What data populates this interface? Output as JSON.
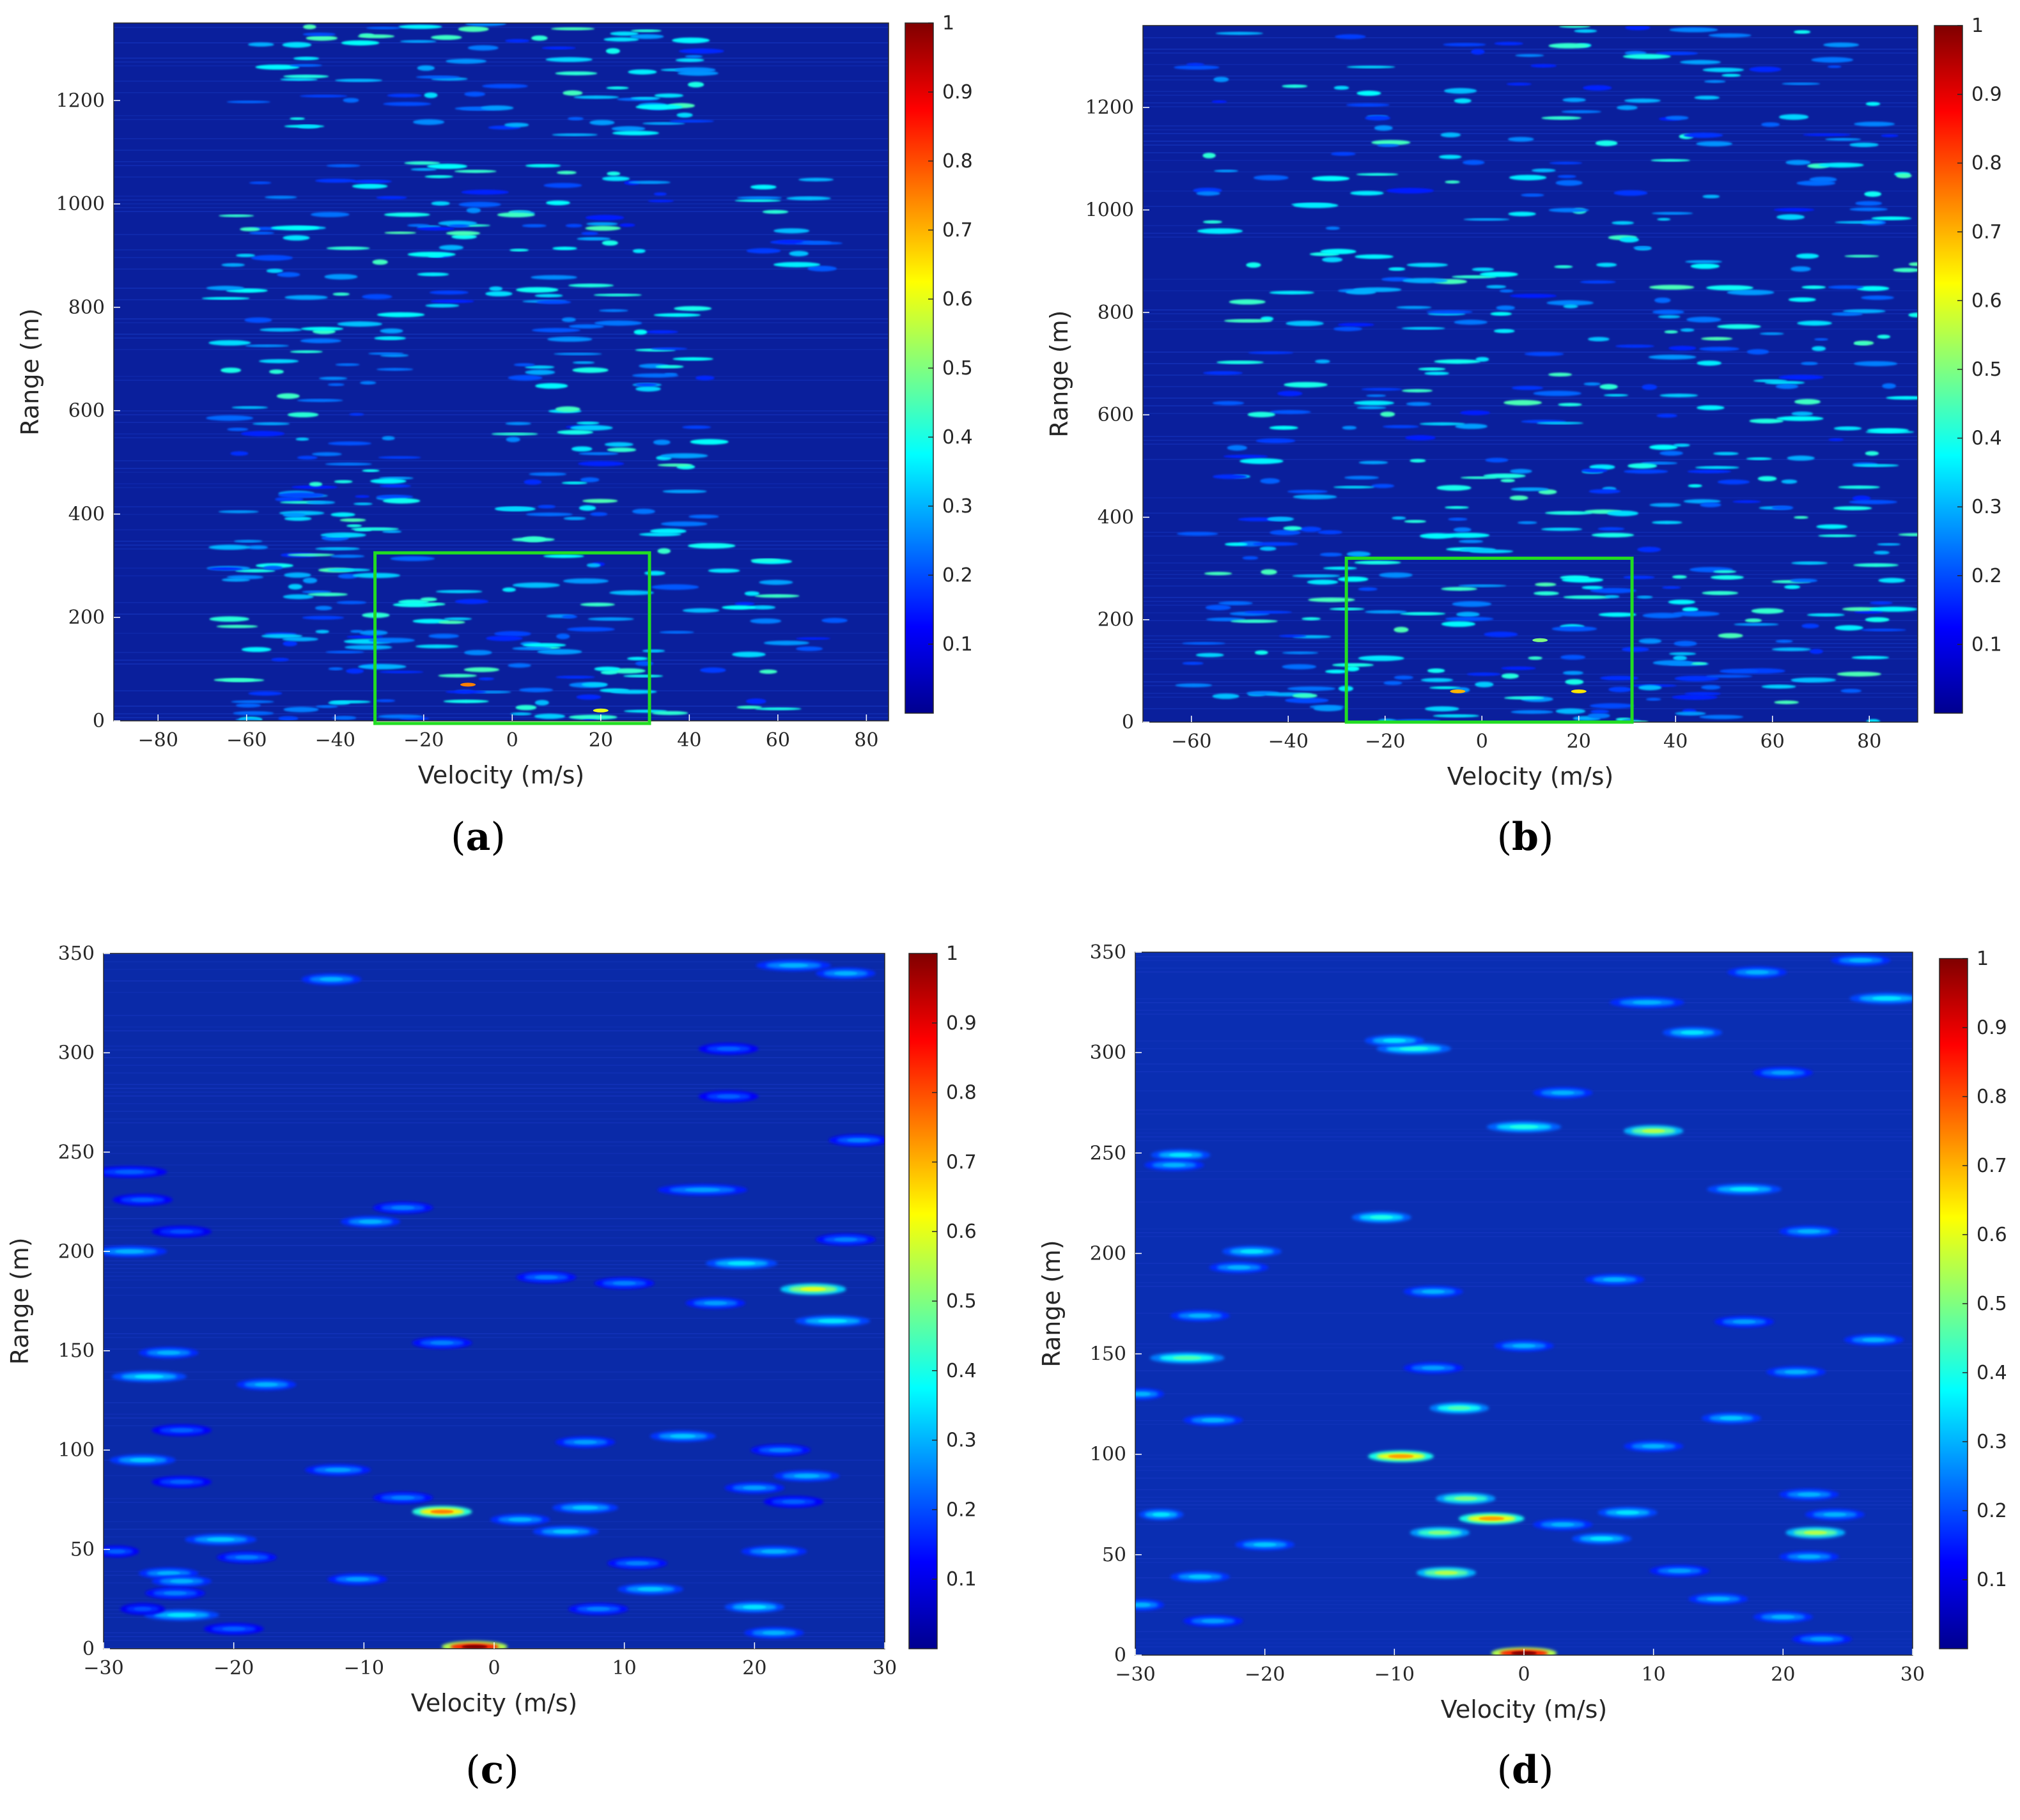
{
  "chart_data": [
    {
      "type": "heatmap",
      "panel_label": "a",
      "xlabel": "Velocity (m/s)",
      "ylabel": "Range (m)",
      "xlim": [
        -90,
        85
      ],
      "ylim": [
        0,
        1350
      ],
      "xticks": [
        -80,
        -60,
        -40,
        -20,
        0,
        20,
        40,
        60,
        80
      ],
      "yticks": [
        0,
        200,
        400,
        600,
        800,
        1000,
        1200
      ],
      "xtick_labels": [
        "−80",
        "−60",
        "−40",
        "−20",
        "0",
        "20",
        "40",
        "60",
        "80"
      ],
      "ytick_labels": [
        "0",
        "200",
        "400",
        "600",
        "800",
        "1000",
        "1200"
      ],
      "colorbar": {
        "min": 0,
        "max": 1,
        "ticks": [
          0.1,
          0.2,
          0.3,
          0.4,
          0.5,
          0.6,
          0.7,
          0.8,
          0.9,
          1
        ],
        "tick_labels": [
          "0.1",
          "0.2",
          "0.3",
          "0.4",
          "0.5",
          "0.6",
          "0.7",
          "0.8",
          "0.9",
          "1"
        ],
        "colormap": "jet"
      },
      "roi_box": {
        "x": [
          -31,
          31
        ],
        "y": [
          -5,
          325
        ],
        "color": "#22dd22"
      },
      "background_color": "#0a1f9c",
      "clusters": [
        {
          "vx": [
            -65,
            -30
          ],
          "vy": [
            0,
            350
          ],
          "n": 60
        },
        {
          "vx": [
            -30,
            35
          ],
          "vy": [
            0,
            340
          ],
          "n": 70
        },
        {
          "vx": [
            35,
            75
          ],
          "vy": [
            0,
            340
          ],
          "n": 25
        },
        {
          "vx": [
            -65,
            -25
          ],
          "vy": [
            350,
            800
          ],
          "n": 70
        },
        {
          "vx": [
            0,
            45
          ],
          "vy": [
            350,
            800
          ],
          "n": 70
        },
        {
          "vx": [
            -65,
            35
          ],
          "vy": [
            800,
            1080
          ],
          "n": 90
        },
        {
          "vx": [
            55,
            70
          ],
          "vy": [
            860,
            1060
          ],
          "n": 15
        },
        {
          "vx": [
            -60,
            45
          ],
          "vy": [
            1130,
            1350
          ],
          "n": 80
        }
      ],
      "hotspots": [
        {
          "v": -10,
          "r": 70,
          "a": 0.75
        },
        {
          "v": 20,
          "r": 20,
          "a": 0.6
        }
      ]
    },
    {
      "type": "heatmap",
      "panel_label": "b",
      "xlabel": "Velocity (m/s)",
      "ylabel": "Range (m)",
      "xlim": [
        -70,
        90
      ],
      "ylim": [
        0,
        1360
      ],
      "xticks": [
        -60,
        -40,
        -20,
        0,
        20,
        40,
        60,
        80
      ],
      "yticks": [
        0,
        200,
        400,
        600,
        800,
        1000,
        1200
      ],
      "xtick_labels": [
        "−60",
        "−40",
        "−20",
        "0",
        "20",
        "40",
        "60",
        "80"
      ],
      "ytick_labels": [
        "0",
        "200",
        "400",
        "600",
        "800",
        "1000",
        "1200"
      ],
      "colorbar": {
        "min": 0,
        "max": 1,
        "ticks": [
          0.1,
          0.2,
          0.3,
          0.4,
          0.5,
          0.6,
          0.7,
          0.8,
          0.9,
          1
        ],
        "tick_labels": [
          "0.1",
          "0.2",
          "0.3",
          "0.4",
          "0.5",
          "0.6",
          "0.7",
          "0.8",
          "0.9",
          "1"
        ],
        "colormap": "jet"
      },
      "roi_box": {
        "x": [
          -28,
          31
        ],
        "y": [
          0,
          320
        ],
        "color": "#22dd22"
      },
      "background_color": "#0a1f9c",
      "clusters": [
        {
          "vx": [
            -60,
            90
          ],
          "vy": [
            0,
            420
          ],
          "n": 200
        },
        {
          "vx": [
            -55,
            90
          ],
          "vy": [
            420,
            820
          ],
          "n": 150
        },
        {
          "vx": [
            -60,
            90
          ],
          "vy": [
            820,
            1360
          ],
          "n": 160
        }
      ],
      "hotspots": [
        {
          "v": -5,
          "r": 60,
          "a": 0.7
        },
        {
          "v": 20,
          "r": 60,
          "a": 0.65
        },
        {
          "v": 12,
          "r": 160,
          "a": 0.5
        }
      ]
    },
    {
      "type": "heatmap",
      "panel_label": "c",
      "xlabel": "Velocity (m/s)",
      "ylabel": "Range (m)",
      "xlim": [
        -30,
        30
      ],
      "ylim": [
        0,
        350
      ],
      "xticks": [
        -30,
        -20,
        -10,
        0,
        10,
        20,
        30
      ],
      "yticks": [
        0,
        50,
        100,
        150,
        200,
        250,
        300,
        350
      ],
      "xtick_labels": [
        "−30",
        "−20",
        "−10",
        "0",
        "10",
        "20",
        "30"
      ],
      "ytick_labels": [
        "0",
        "50",
        "100",
        "150",
        "200",
        "250",
        "300",
        "350"
      ],
      "colorbar": {
        "min": 0,
        "max": 1,
        "ticks": [
          0.1,
          0.2,
          0.3,
          0.4,
          0.5,
          0.6,
          0.7,
          0.8,
          0.9,
          1
        ],
        "tick_labels": [
          "0.1",
          "0.2",
          "0.3",
          "0.4",
          "0.5",
          "0.6",
          "0.7",
          "0.8",
          "0.9",
          "1"
        ],
        "colormap": "jet"
      },
      "background_color": "#0a2aa8",
      "blobs": [
        {
          "v": -1.5,
          "r": 1,
          "w": 2.2,
          "a": 1.0
        },
        {
          "v": -4,
          "r": 69,
          "w": 2.0,
          "a": 0.75
        },
        {
          "v": 24.5,
          "r": 181,
          "w": 2.2,
          "a": 0.6
        },
        {
          "v": 19,
          "r": 194,
          "w": 2.4,
          "a": 0.35
        },
        {
          "v": 26,
          "r": 165,
          "w": 2.5,
          "a": 0.35
        },
        {
          "v": 23,
          "r": 344,
          "w": 2.5,
          "a": 0.3
        },
        {
          "v": 27,
          "r": 340,
          "w": 2.0,
          "a": 0.3
        },
        {
          "v": -12.5,
          "r": 337,
          "w": 2.0,
          "a": 0.3
        },
        {
          "v": 18,
          "r": 302,
          "w": 2.0,
          "a": 0.22
        },
        {
          "v": 18,
          "r": 278,
          "w": 2.0,
          "a": 0.22
        },
        {
          "v": -28,
          "r": 200,
          "w": 2.5,
          "a": 0.3
        },
        {
          "v": -9.5,
          "r": 215,
          "w": 2.0,
          "a": 0.3
        },
        {
          "v": -7,
          "r": 222,
          "w": 2.0,
          "a": 0.25
        },
        {
          "v": 16,
          "r": 231,
          "w": 3.0,
          "a": 0.28
        },
        {
          "v": -27,
          "r": 226,
          "w": 2.0,
          "a": 0.22
        },
        {
          "v": -28,
          "r": 240,
          "w": 2.5,
          "a": 0.22
        },
        {
          "v": -24,
          "r": 210,
          "w": 2.0,
          "a": 0.2
        },
        {
          "v": 4,
          "r": 187,
          "w": 2.0,
          "a": 0.25
        },
        {
          "v": 10,
          "r": 184,
          "w": 2.0,
          "a": 0.25
        },
        {
          "v": 17,
          "r": 174,
          "w": 2.0,
          "a": 0.28
        },
        {
          "v": 27,
          "r": 206,
          "w": 2.0,
          "a": 0.25
        },
        {
          "v": 28,
          "r": 256,
          "w": 2.0,
          "a": 0.25
        },
        {
          "v": -4,
          "r": 154,
          "w": 2.0,
          "a": 0.25
        },
        {
          "v": -25,
          "r": 149,
          "w": 2.0,
          "a": 0.3
        },
        {
          "v": -26.5,
          "r": 137,
          "w": 2.5,
          "a": 0.35
        },
        {
          "v": -17.5,
          "r": 133,
          "w": 2.0,
          "a": 0.3
        },
        {
          "v": -24,
          "r": 110,
          "w": 2.0,
          "a": 0.22
        },
        {
          "v": 7,
          "r": 104,
          "w": 2.0,
          "a": 0.28
        },
        {
          "v": 14.5,
          "r": 107,
          "w": 2.2,
          "a": 0.32
        },
        {
          "v": -27,
          "r": 95,
          "w": 2.2,
          "a": 0.32
        },
        {
          "v": -12,
          "r": 90,
          "w": 2.2,
          "a": 0.28
        },
        {
          "v": -24,
          "r": 84,
          "w": 2.0,
          "a": 0.22
        },
        {
          "v": 22,
          "r": 100,
          "w": 2.0,
          "a": 0.25
        },
        {
          "v": 24,
          "r": 87,
          "w": 2.2,
          "a": 0.3
        },
        {
          "v": 20,
          "r": 81,
          "w": 2.0,
          "a": 0.28
        },
        {
          "v": 23,
          "r": 74,
          "w": 2.0,
          "a": 0.22
        },
        {
          "v": -7,
          "r": 76,
          "w": 2.0,
          "a": 0.25
        },
        {
          "v": 7,
          "r": 71,
          "w": 2.2,
          "a": 0.32
        },
        {
          "v": 2,
          "r": 65,
          "w": 2.0,
          "a": 0.3
        },
        {
          "v": 5.5,
          "r": 59,
          "w": 2.2,
          "a": 0.32
        },
        {
          "v": -21,
          "r": 55,
          "w": 2.4,
          "a": 0.32
        },
        {
          "v": -29,
          "r": 49,
          "w": 1.5,
          "a": 0.22
        },
        {
          "v": -19,
          "r": 46,
          "w": 2.0,
          "a": 0.25
        },
        {
          "v": 11,
          "r": 43,
          "w": 2.0,
          "a": 0.25
        },
        {
          "v": 21.5,
          "r": 49,
          "w": 2.2,
          "a": 0.3
        },
        {
          "v": -25,
          "r": 38,
          "w": 2.0,
          "a": 0.3
        },
        {
          "v": -24,
          "r": 34,
          "w": 2.0,
          "a": 0.3
        },
        {
          "v": -10.5,
          "r": 35,
          "w": 2.0,
          "a": 0.28
        },
        {
          "v": 12,
          "r": 30,
          "w": 2.2,
          "a": 0.32
        },
        {
          "v": -24.5,
          "r": 28,
          "w": 2.0,
          "a": 0.25
        },
        {
          "v": 8,
          "r": 20,
          "w": 2.0,
          "a": 0.25
        },
        {
          "v": 20,
          "r": 21,
          "w": 2.0,
          "a": 0.35
        },
        {
          "v": -24,
          "r": 17,
          "w": 2.5,
          "a": 0.35
        },
        {
          "v": -20,
          "r": 10,
          "w": 2.0,
          "a": 0.22
        },
        {
          "v": 21.5,
          "r": 8,
          "w": 2.0,
          "a": 0.3
        },
        {
          "v": -27,
          "r": 20,
          "w": 1.5,
          "a": 0.2
        }
      ]
    },
    {
      "type": "heatmap",
      "panel_label": "d",
      "xlabel": "Velocity (m/s)",
      "ylabel": "Range (m)",
      "xlim": [
        -30,
        30
      ],
      "ylim": [
        0,
        350
      ],
      "xticks": [
        -30,
        -20,
        -10,
        0,
        10,
        20,
        30
      ],
      "yticks": [
        0,
        50,
        100,
        150,
        200,
        250,
        300,
        350
      ],
      "xtick_labels": [
        "−30",
        "−20",
        "−10",
        "0",
        "10",
        "20",
        "30"
      ],
      "ytick_labels": [
        "0",
        "50",
        "100",
        "150",
        "200",
        "250",
        "300",
        "350"
      ],
      "colorbar": {
        "min": 0,
        "max": 1,
        "ticks": [
          0.1,
          0.2,
          0.3,
          0.4,
          0.5,
          0.6,
          0.7,
          0.8,
          0.9,
          1
        ],
        "tick_labels": [
          "0.1",
          "0.2",
          "0.3",
          "0.4",
          "0.5",
          "0.6",
          "0.7",
          "0.8",
          "0.9",
          "1"
        ],
        "colormap": "jet"
      },
      "background_color": "#0a2eb2",
      "blobs": [
        {
          "v": 0,
          "r": 1,
          "w": 2.2,
          "a": 1.0
        },
        {
          "v": -9.5,
          "r": 99,
          "w": 2.2,
          "a": 0.72
        },
        {
          "v": -2.5,
          "r": 68,
          "w": 2.2,
          "a": 0.72
        },
        {
          "v": -4.5,
          "r": 78,
          "w": 2.0,
          "a": 0.5
        },
        {
          "v": -6.5,
          "r": 61,
          "w": 2.0,
          "a": 0.5
        },
        {
          "v": -6,
          "r": 41,
          "w": 2.0,
          "a": 0.55
        },
        {
          "v": -5,
          "r": 123,
          "w": 2.0,
          "a": 0.45
        },
        {
          "v": 10,
          "r": 261,
          "w": 2.0,
          "a": 0.55
        },
        {
          "v": 22.5,
          "r": 61,
          "w": 2.0,
          "a": 0.55
        },
        {
          "v": -11,
          "r": 218,
          "w": 2.0,
          "a": 0.4
        },
        {
          "v": -8.5,
          "r": 302,
          "w": 2.5,
          "a": 0.4
        },
        {
          "v": -10,
          "r": 306,
          "w": 2.0,
          "a": 0.35
        },
        {
          "v": 0,
          "r": 263,
          "w": 2.5,
          "a": 0.4
        },
        {
          "v": 13,
          "r": 310,
          "w": 2.0,
          "a": 0.35
        },
        {
          "v": 17,
          "r": 232,
          "w": 2.5,
          "a": 0.35
        },
        {
          "v": 28,
          "r": 327,
          "w": 2.5,
          "a": 0.35
        },
        {
          "v": 9.5,
          "r": 325,
          "w": 2.5,
          "a": 0.3
        },
        {
          "v": 3,
          "r": 280,
          "w": 2.0,
          "a": 0.3
        },
        {
          "v": -26,
          "r": 148,
          "w": 2.5,
          "a": 0.45
        },
        {
          "v": -21,
          "r": 201,
          "w": 2.0,
          "a": 0.35
        },
        {
          "v": -22,
          "r": 193,
          "w": 2.0,
          "a": 0.3
        },
        {
          "v": -25,
          "r": 169,
          "w": 2.0,
          "a": 0.3
        },
        {
          "v": -26.5,
          "r": 249,
          "w": 2.0,
          "a": 0.35
        },
        {
          "v": -27,
          "r": 244,
          "w": 2.0,
          "a": 0.3
        },
        {
          "v": 7,
          "r": 187,
          "w": 2.0,
          "a": 0.3
        },
        {
          "v": -7,
          "r": 181,
          "w": 2.0,
          "a": 0.3
        },
        {
          "v": 27,
          "r": 157,
          "w": 2.0,
          "a": 0.3
        },
        {
          "v": 22,
          "r": 211,
          "w": 2.0,
          "a": 0.3
        },
        {
          "v": 0,
          "r": 154,
          "w": 2.0,
          "a": 0.3
        },
        {
          "v": 16,
          "r": 118,
          "w": 2.0,
          "a": 0.32
        },
        {
          "v": 10,
          "r": 104,
          "w": 2.0,
          "a": 0.3
        },
        {
          "v": -24,
          "r": 117,
          "w": 2.0,
          "a": 0.3
        },
        {
          "v": 21,
          "r": 141,
          "w": 2.0,
          "a": 0.3
        },
        {
          "v": 8,
          "r": 71,
          "w": 2.0,
          "a": 0.35
        },
        {
          "v": 6,
          "r": 58,
          "w": 2.0,
          "a": 0.35
        },
        {
          "v": 3,
          "r": 65,
          "w": 2.0,
          "a": 0.3
        },
        {
          "v": -20,
          "r": 55,
          "w": 2.0,
          "a": 0.32
        },
        {
          "v": -25,
          "r": 39,
          "w": 2.0,
          "a": 0.32
        },
        {
          "v": -24,
          "r": 17,
          "w": 2.0,
          "a": 0.28
        },
        {
          "v": 22,
          "r": 80,
          "w": 2.0,
          "a": 0.3
        },
        {
          "v": 24,
          "r": 70,
          "w": 2.0,
          "a": 0.3
        },
        {
          "v": 22,
          "r": 49,
          "w": 2.0,
          "a": 0.3
        },
        {
          "v": 20,
          "r": 19,
          "w": 2.0,
          "a": 0.3
        },
        {
          "v": 23,
          "r": 8,
          "w": 2.0,
          "a": 0.28
        },
        {
          "v": 15,
          "r": 28,
          "w": 2.0,
          "a": 0.3
        },
        {
          "v": -7,
          "r": 143,
          "w": 2.0,
          "a": 0.28
        },
        {
          "v": -29.5,
          "r": 25,
          "w": 1.5,
          "a": 0.3
        },
        {
          "v": -28,
          "r": 70,
          "w": 1.5,
          "a": 0.35
        },
        {
          "v": -29.5,
          "r": 130,
          "w": 1.5,
          "a": 0.3
        },
        {
          "v": 12,
          "r": 42,
          "w": 2.0,
          "a": 0.28
        },
        {
          "v": 17,
          "r": 166,
          "w": 2.0,
          "a": 0.28
        },
        {
          "v": 26,
          "r": 346,
          "w": 2.0,
          "a": 0.3
        },
        {
          "v": 18,
          "r": 340,
          "w": 2.0,
          "a": 0.3
        },
        {
          "v": 20,
          "r": 290,
          "w": 2.0,
          "a": 0.28
        }
      ]
    }
  ]
}
